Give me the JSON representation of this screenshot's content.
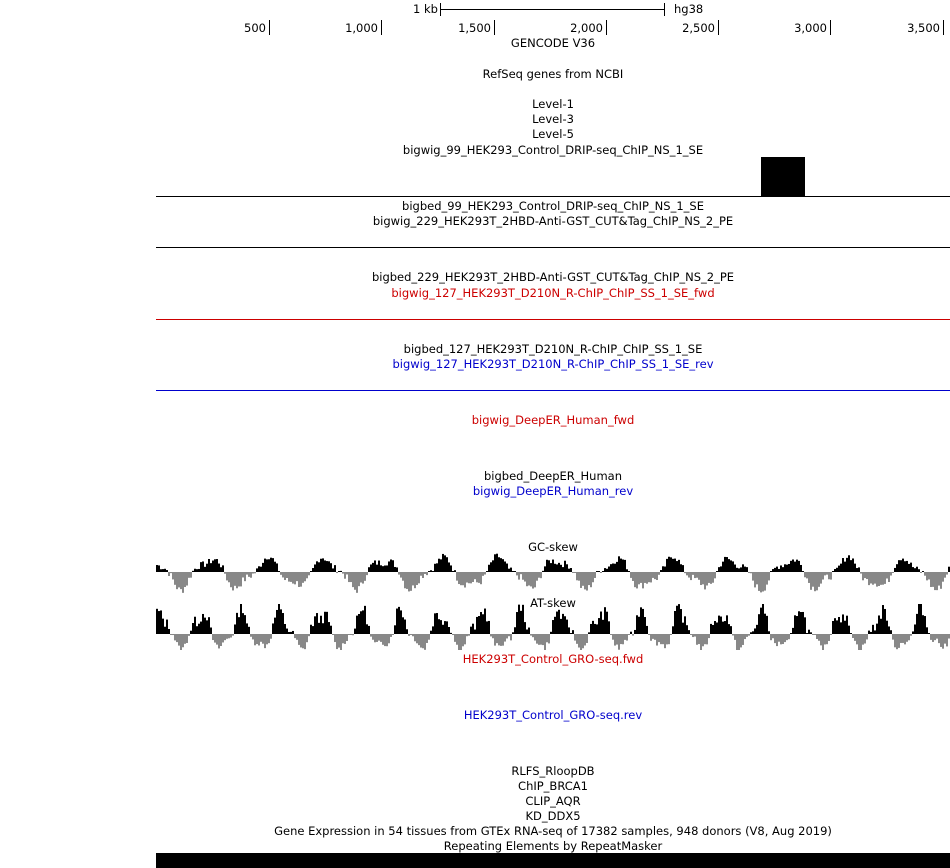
{
  "scale_bar": {
    "label": "1 kb",
    "assembly": "hg38"
  },
  "ruler": {
    "ticks": [
      "500",
      "1,000",
      "1,500",
      "2,000",
      "2,500",
      "3,000",
      "3,500"
    ]
  },
  "tracks": {
    "gencode": "GENCODE V36",
    "refseq": "RefSeq genes from NCBI",
    "level1": "Level-1",
    "level3": "Level-3",
    "level5": "Level-5",
    "bigwig99": "bigwig_99_HEK293_Control_DRIP-seq_ChIP_NS_1_SE",
    "bigbed99": "bigbed_99_HEK293_Control_DRIP-seq_ChIP_NS_1_SE",
    "bigwig229": "bigwig_229_HEK293T_2HBD-Anti-GST_CUT&Tag_ChIP_NS_2_PE",
    "bigbed229": "bigbed_229_HEK293T_2HBD-Anti-GST_CUT&Tag_ChIP_NS_2_PE",
    "bigwig127_fwd": "bigwig_127_HEK293T_D210N_R-ChIP_ChIP_SS_1_SE_fwd",
    "bigbed127": "bigbed_127_HEK293T_D210N_R-ChIP_ChIP_SS_1_SE",
    "bigwig127_rev": "bigwig_127_HEK293T_D210N_R-ChIP_ChIP_SS_1_SE_rev",
    "deeper_fwd": "bigwig_DeepER_Human_fwd",
    "deeper_bed": "bigbed_DeepER_Human",
    "deeper_rev": "bigwig_DeepER_Human_rev",
    "gc_skew": "GC-skew",
    "at_skew": "AT-skew",
    "gro_fwd": "HEK293T_Control_GRO-seq.fwd",
    "gro_rev": "HEK293T_Control_GRO-seq.rev",
    "rlfs": "RLFS_RloopDB",
    "chip_brca1": "ChIP_BRCA1",
    "clip_aqr": "CLIP_AQR",
    "kd_ddx5": "KD_DDX5",
    "gtex": "Gene Expression in 54 tissues from GTEx RNA-seq of 17382 samples, 948 donors (V8, Aug 2019)",
    "repeatmasker": "Repeating Elements by RepeatMasker"
  },
  "colors": {
    "forward_strand": "#cc0000",
    "reverse_strand": "#0000cc",
    "skew_positive": "#000000",
    "skew_negative": "#888888"
  }
}
